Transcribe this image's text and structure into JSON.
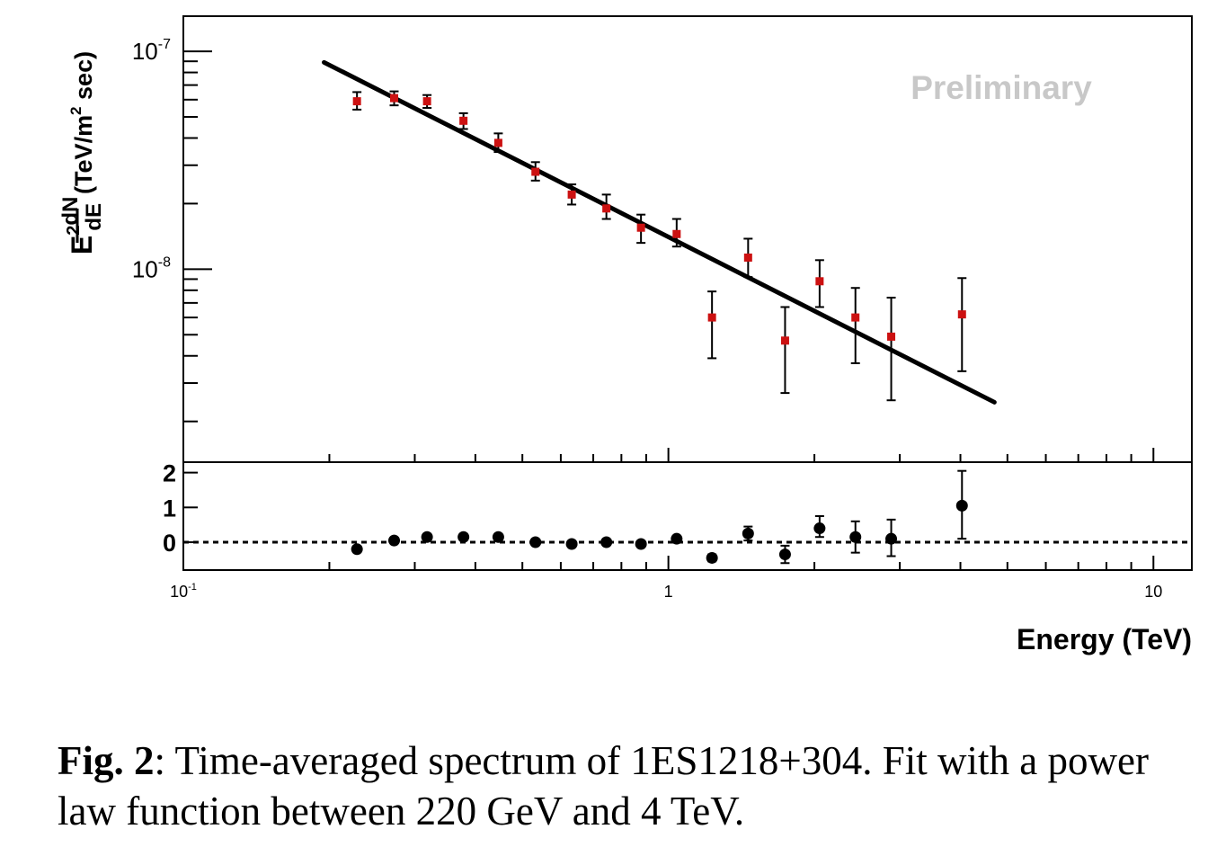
{
  "chart_data": [
    {
      "type": "scatter",
      "panel": "spectrum",
      "x_scale": "log",
      "y_scale": "log",
      "xlim": [
        0.1,
        12
      ],
      "ylim": [
        1.3e-09,
        1.45e-07
      ],
      "ylabel_parts": {
        "e": "E",
        "sup2": "2",
        "num": "dN",
        "den": "dE",
        "pre": "(TeV/m",
        "sup": "2",
        "post": " sec)"
      },
      "yticks": [
        {
          "value": 1e-07,
          "base": "10",
          "exp": "-7"
        },
        {
          "value": 1e-08,
          "base": "10",
          "exp": "-8"
        }
      ],
      "annotation": "Preliminary",
      "points": {
        "name": "",
        "color": "#cc1111",
        "x": [
          0.228,
          0.272,
          0.318,
          0.378,
          0.446,
          0.532,
          0.632,
          0.745,
          0.878,
          1.04,
          1.23,
          1.46,
          1.74,
          2.05,
          2.43,
          2.88,
          4.03
        ],
        "y": [
          5.9e-08,
          6.1e-08,
          5.9e-08,
          4.8e-08,
          3.8e-08,
          2.8e-08,
          2.2e-08,
          1.9e-08,
          1.55e-08,
          1.45e-08,
          6e-09,
          1.13e-08,
          4.7e-09,
          8.8e-09,
          6e-09,
          4.9e-09,
          6.2e-09
        ],
        "ylo": [
          5.4e-08,
          5.65e-08,
          5.5e-08,
          4.4e-08,
          3.45e-08,
          2.55e-08,
          1.98e-08,
          1.7e-08,
          1.32e-08,
          1.27e-08,
          3.9e-09,
          9.2e-09,
          2.7e-09,
          6.7e-09,
          3.7e-09,
          2.5e-09,
          3.4e-09
        ],
        "yhi": [
          6.5e-08,
          6.55e-08,
          6.3e-08,
          5.2e-08,
          4.2e-08,
          3.1e-08,
          2.45e-08,
          2.2e-08,
          1.78e-08,
          1.7e-08,
          7.9e-09,
          1.38e-08,
          6.7e-09,
          1.1e-08,
          8.2e-09,
          7.4e-09,
          9.1e-09
        ]
      },
      "fit_line": {
        "x": [
          0.195,
          4.7
        ],
        "y": [
          8.9e-08,
          2.45e-09
        ]
      }
    },
    {
      "type": "scatter",
      "panel": "residuals",
      "x_scale": "log",
      "xlim": [
        0.1,
        12
      ],
      "ylim": [
        -0.8,
        2.3
      ],
      "yticks": [
        0,
        1,
        2
      ],
      "xticks": [
        {
          "value": 0.1,
          "base": "10",
          "exp": "-1"
        },
        {
          "value": 1,
          "base": "1",
          "exp": ""
        },
        {
          "value": 10,
          "base": "10",
          "exp": ""
        }
      ],
      "xlabel": "Energy (TeV)",
      "reference_line": 0,
      "points": {
        "name": "",
        "color": "#000000",
        "x": [
          0.228,
          0.272,
          0.318,
          0.378,
          0.446,
          0.532,
          0.632,
          0.745,
          0.878,
          1.04,
          1.23,
          1.46,
          1.74,
          2.05,
          2.43,
          2.88,
          4.03
        ],
        "y": [
          -0.2,
          0.05,
          0.15,
          0.15,
          0.15,
          0.0,
          -0.05,
          0.0,
          -0.05,
          0.1,
          -0.45,
          0.25,
          -0.35,
          0.4,
          0.15,
          0.1,
          1.05
        ],
        "ylo": [
          -0.25,
          0.0,
          0.1,
          0.1,
          0.1,
          -0.05,
          -0.1,
          -0.05,
          -0.1,
          0.05,
          -0.55,
          0.05,
          -0.6,
          0.15,
          -0.3,
          -0.4,
          0.1
        ],
        "yhi": [
          -0.15,
          0.1,
          0.2,
          0.2,
          0.2,
          0.05,
          0.0,
          0.05,
          0.0,
          0.15,
          -0.35,
          0.45,
          -0.1,
          0.75,
          0.6,
          0.65,
          2.05
        ]
      }
    }
  ],
  "caption": {
    "label": "Fig. 2",
    "text": ": Time-averaged spectrum of 1ES1218+304. Fit with a power law function between 220 GeV and 4 TeV."
  }
}
